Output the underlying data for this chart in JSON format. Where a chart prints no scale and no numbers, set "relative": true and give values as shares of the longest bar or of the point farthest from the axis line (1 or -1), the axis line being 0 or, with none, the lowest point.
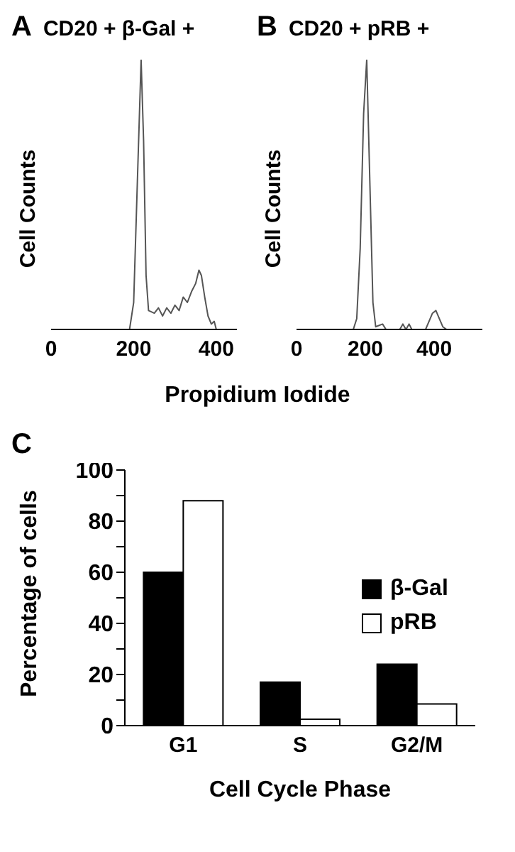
{
  "chart_data": [
    {
      "type": "line",
      "relative": true,
      "title": "CD20 + β-Gal +",
      "xlabel": "Propidium Iodide",
      "ylabel": "Cell Counts",
      "annotations": [
        "A"
      ],
      "xlim": [
        0,
        450
      ],
      "xticks": [
        0,
        200,
        400
      ],
      "grid": false,
      "legend": false,
      "marker": "none",
      "line_style": "solid",
      "x": [
        150,
        190,
        200,
        210,
        218,
        224,
        230,
        236,
        250,
        260,
        270,
        280,
        290,
        300,
        310,
        320,
        330,
        340,
        350,
        358,
        364,
        372,
        380,
        388,
        395,
        400
      ],
      "series": [
        {
          "color": "#555555",
          "values": [
            0,
            0,
            0.1,
            0.6,
            1.0,
            0.7,
            0.2,
            0.07,
            0.06,
            0.08,
            0.05,
            0.08,
            0.06,
            0.09,
            0.07,
            0.12,
            0.1,
            0.14,
            0.17,
            0.22,
            0.2,
            0.12,
            0.05,
            0.02,
            0.03,
            0
          ]
        }
      ]
    },
    {
      "type": "line",
      "relative": true,
      "title": "CD20 + pRB +",
      "ylabel": "Cell Counts",
      "annotations": [
        "B"
      ],
      "xlim": [
        0,
        540
      ],
      "xticks": [
        0,
        200,
        400
      ],
      "grid": false,
      "legend": false,
      "marker": "none",
      "line_style": "solid",
      "x": [
        150,
        165,
        175,
        185,
        195,
        204,
        212,
        222,
        230,
        250,
        260,
        300,
        309,
        318,
        327,
        335,
        375,
        385,
        395,
        405,
        415,
        425,
        436
      ],
      "series": [
        {
          "color": "#555555",
          "values": [
            0,
            0,
            0.04,
            0.3,
            0.8,
            1.0,
            0.6,
            0.1,
            0.01,
            0.02,
            0,
            0,
            0.02,
            0,
            0.02,
            0,
            0,
            0.03,
            0.06,
            0.07,
            0.04,
            0.01,
            0
          ]
        }
      ]
    },
    {
      "type": "bar",
      "xlabel": "Cell Cycle Phase",
      "ylabel": "Percentage of cells",
      "annotations": [
        "C"
      ],
      "categories": [
        "G1",
        "S",
        "G2/M"
      ],
      "ylim": [
        0,
        100
      ],
      "yticks": [
        0,
        {
          "value": 10,
          "label": null
        },
        20,
        {
          "value": 30,
          "label": null
        },
        40,
        {
          "value": 50,
          "label": null
        },
        60,
        {
          "value": 70,
          "label": null
        },
        80,
        {
          "value": 90,
          "label": null
        },
        100
      ],
      "grid": false,
      "legend": "right",
      "series": [
        {
          "name": "β-Gal",
          "color": "#000000",
          "values": [
            60,
            17,
            24
          ]
        },
        {
          "name": "pRB",
          "color": "#ffffff",
          "values": [
            88,
            2.5,
            8.5
          ]
        }
      ]
    }
  ]
}
